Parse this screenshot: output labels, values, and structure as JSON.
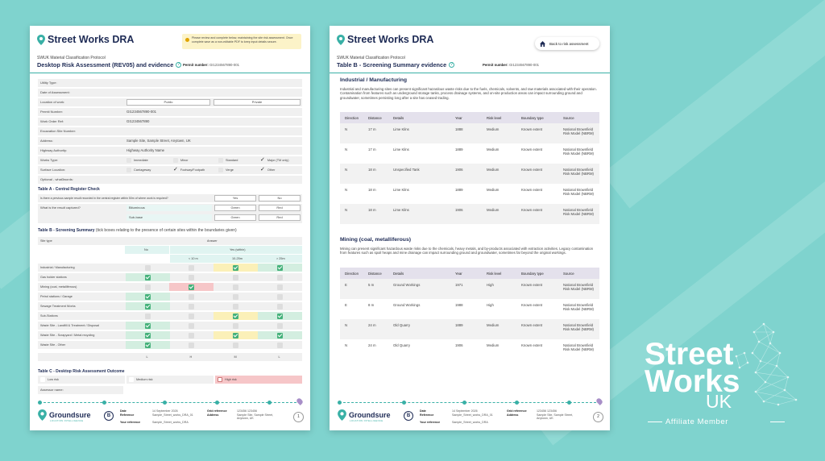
{
  "page1": {
    "brand": "Street Works DRA",
    "notice": "Please review and complete below, maintaining the site risk assessment. Once complete save as a non-editable PDF to keep input details secure.",
    "protocol": "SWUK Material Classification Protocol",
    "title": "Desktop Risk Assessment (REV05) and evidence",
    "permit_label": "Permit number:",
    "permit_value": "GI1234567890-001",
    "form": {
      "utility_type": "Utility Type:",
      "date_of_assessment": "Date of Assessment:",
      "location_of_work": "Location of work:",
      "location_public": "Public",
      "location_private": "Private",
      "permit_number": "Permit Number:",
      "permit_number_value": "GI1234567890-001",
      "work_order_ref": "Work Order Ref:",
      "work_order_value": "GI1234567890",
      "excavation_site_number": "Excavation Site Number:",
      "address": "Address:",
      "address_value": "Sample Site, Sample Street, Anytown, UK",
      "highway_authority": "Highway Authority:",
      "highway_authority_value": "Highway Authority Name",
      "works_type": "Works Type:",
      "works_immediate": "Immediate",
      "works_minor": "Minor",
      "works_standard": "Standard",
      "works_major": "Major (TM only)",
      "surface_location": "Surface Location:",
      "surface_carriageway": "Carriageway",
      "surface_footway": "Footway/Footpath",
      "surface_verge": "Verge",
      "surface_other": "Other",
      "optional": "Optional - what3words:"
    },
    "table_a": {
      "title": "Table A - Central Register Check",
      "q1": "Is there a previous sample result recorded in the central register within 50m of where work is required?",
      "yes": "Yes",
      "no": "No",
      "q2": "What is the result captured?",
      "bituminous": "Bituminous",
      "sub_base": "Sub-base",
      "green": "Green",
      "red": "Red"
    },
    "table_b": {
      "title": "Table B - Screening Summary",
      "title_note": "(tick boxes relating to the presence of certain sites within the boundaries given)",
      "site_type": "Site type",
      "answer": "Answer",
      "no": "No",
      "yes_within": "Yes (within)",
      "lt10": "< 10 m",
      "r10_25": "10-25m",
      "gt25": "> 25m",
      "rows": [
        {
          "label": "Industrial / Manufacturing",
          "ticks": [
            false,
            false,
            true,
            true
          ]
        },
        {
          "label": "Gas holder stations",
          "ticks": [
            true,
            false,
            false,
            false
          ]
        },
        {
          "label": "Mining (coal, metalliferous)",
          "ticks": [
            false,
            true,
            false,
            false
          ]
        },
        {
          "label": "Petrol stations / Garage",
          "ticks": [
            true,
            false,
            false,
            false
          ]
        },
        {
          "label": "Sewage Treatment Works",
          "ticks": [
            true,
            false,
            false,
            false
          ]
        },
        {
          "label": "Sub-Stations",
          "ticks": [
            false,
            false,
            true,
            true
          ]
        },
        {
          "label": "Waste Site - Landfill & Treatment / Disposal",
          "ticks": [
            true,
            false,
            false,
            false
          ]
        },
        {
          "label": "Waste Site - Scrapyard / Metal recycling",
          "ticks": [
            true,
            false,
            true,
            true
          ]
        },
        {
          "label": "Waste Site - Other",
          "ticks": [
            true,
            false,
            false,
            false
          ]
        }
      ],
      "risk_row": [
        "L",
        "H",
        "M",
        "L"
      ]
    },
    "table_c": {
      "title": "Table C - Desktop Risk Assessment Outcome",
      "low": "Low risk",
      "medium": "Medium risk",
      "high": "High risk",
      "assessor": "Assessor name:"
    },
    "page_number": "1"
  },
  "page2": {
    "brand": "Street Works DRA",
    "back_label": "Back to risk assessment",
    "protocol": "SWUK Material Classification Protocol",
    "title": "Table B - Screening Summary evidence",
    "permit_label": "Permit number:",
    "permit_value": "GI1234567890-001",
    "section1": {
      "heading": "Industrial / Manufacturing",
      "desc": "Industrial and manufacturing sites can present significant hazardous waste risks due to the fuels, chemicals, solvents, and raw materials associated with their operation. Contamination from features such as underground storage tanks, process drainage systems, and on-site production areas can impact surrounding ground and groundwater, sometimes persisting long after a site has ceased trading.",
      "rows": [
        [
          "N",
          "17 m",
          "Lime Kilns",
          "1888",
          "Medium",
          "Known extent",
          "National Brownfield Risk Model (NBRM)"
        ],
        [
          "N",
          "17 m",
          "Lime Kilns",
          "1889",
          "Medium",
          "Known extent",
          "National Brownfield Risk Model (NBRM)"
        ],
        [
          "N",
          "18 m",
          "Unspecified Tank",
          "1906",
          "Medium",
          "Known extent",
          "National Brownfield Risk Model (NBRM)"
        ],
        [
          "N",
          "18 m",
          "Lime Kilns",
          "1889",
          "Medium",
          "Known extent",
          "National Brownfield Risk Model (NBRM)"
        ],
        [
          "N",
          "18 m",
          "Lime Kilns",
          "1906",
          "Medium",
          "Known extent",
          "National Brownfield Risk Model (NBRM)"
        ]
      ]
    },
    "section2": {
      "heading": "Mining (coal, metalliferous)",
      "desc": "Mining can present significant hazardous waste risks due to the chemicals, heavy metals, and by-products associated with extraction activities. Legacy contamination from features such as spoil heaps and mine drainage can impact surrounding ground and groundwater, sometimes far beyond the original workings.",
      "rows": [
        [
          "E",
          "5 m",
          "Ground Workings",
          "1971",
          "High",
          "Known extent",
          "National Brownfield Risk Model (NBRM)"
        ],
        [
          "E",
          "8 m",
          "Ground Workings",
          "1988",
          "High",
          "Known extent",
          "National Brownfield Risk Model (NBRM)"
        ],
        [
          "N",
          "24 m",
          "Old Quarry",
          "1889",
          "Medium",
          "Known extent",
          "National Brownfield Risk Model (NBRM)"
        ],
        [
          "N",
          "24 m",
          "Old Quarry",
          "1906",
          "Medium",
          "Known extent",
          "National Brownfield Risk Model (NBRM)"
        ]
      ]
    },
    "columns": [
      "Direction",
      "Distance",
      "Details",
      "Year",
      "Risk level",
      "Boundary type",
      "Source"
    ],
    "page_number": "2"
  },
  "footer": {
    "brand": "Groundsure",
    "tagline": "LOCATION INTELLIGENCE",
    "date_label": "Date",
    "date_value": "14 September 2026",
    "reference_label": "Reference",
    "reference_value": "Sample_Street_works_DRA_01",
    "your_reference_label": "Your reference",
    "your_reference_value": "Sample_Street_works_DRA",
    "grid_label": "Grid reference",
    "grid_value": "123456 123456",
    "address_label": "Address",
    "address_value": "Sample Site, Sample Street, Anytown, UK"
  },
  "brand_panel": {
    "line1": "Street",
    "line2": "Works",
    "line3": "UK",
    "member": "Affiliate Member"
  },
  "colors": {
    "background": "#7fd3ce",
    "teal": "#39b0a6",
    "navy": "#1e2b55",
    "green_tick": "#45b17a",
    "high_risk": "#f6c6c8",
    "medium_risk": "#fbf0b8",
    "low_risk": "#d3eee0"
  }
}
